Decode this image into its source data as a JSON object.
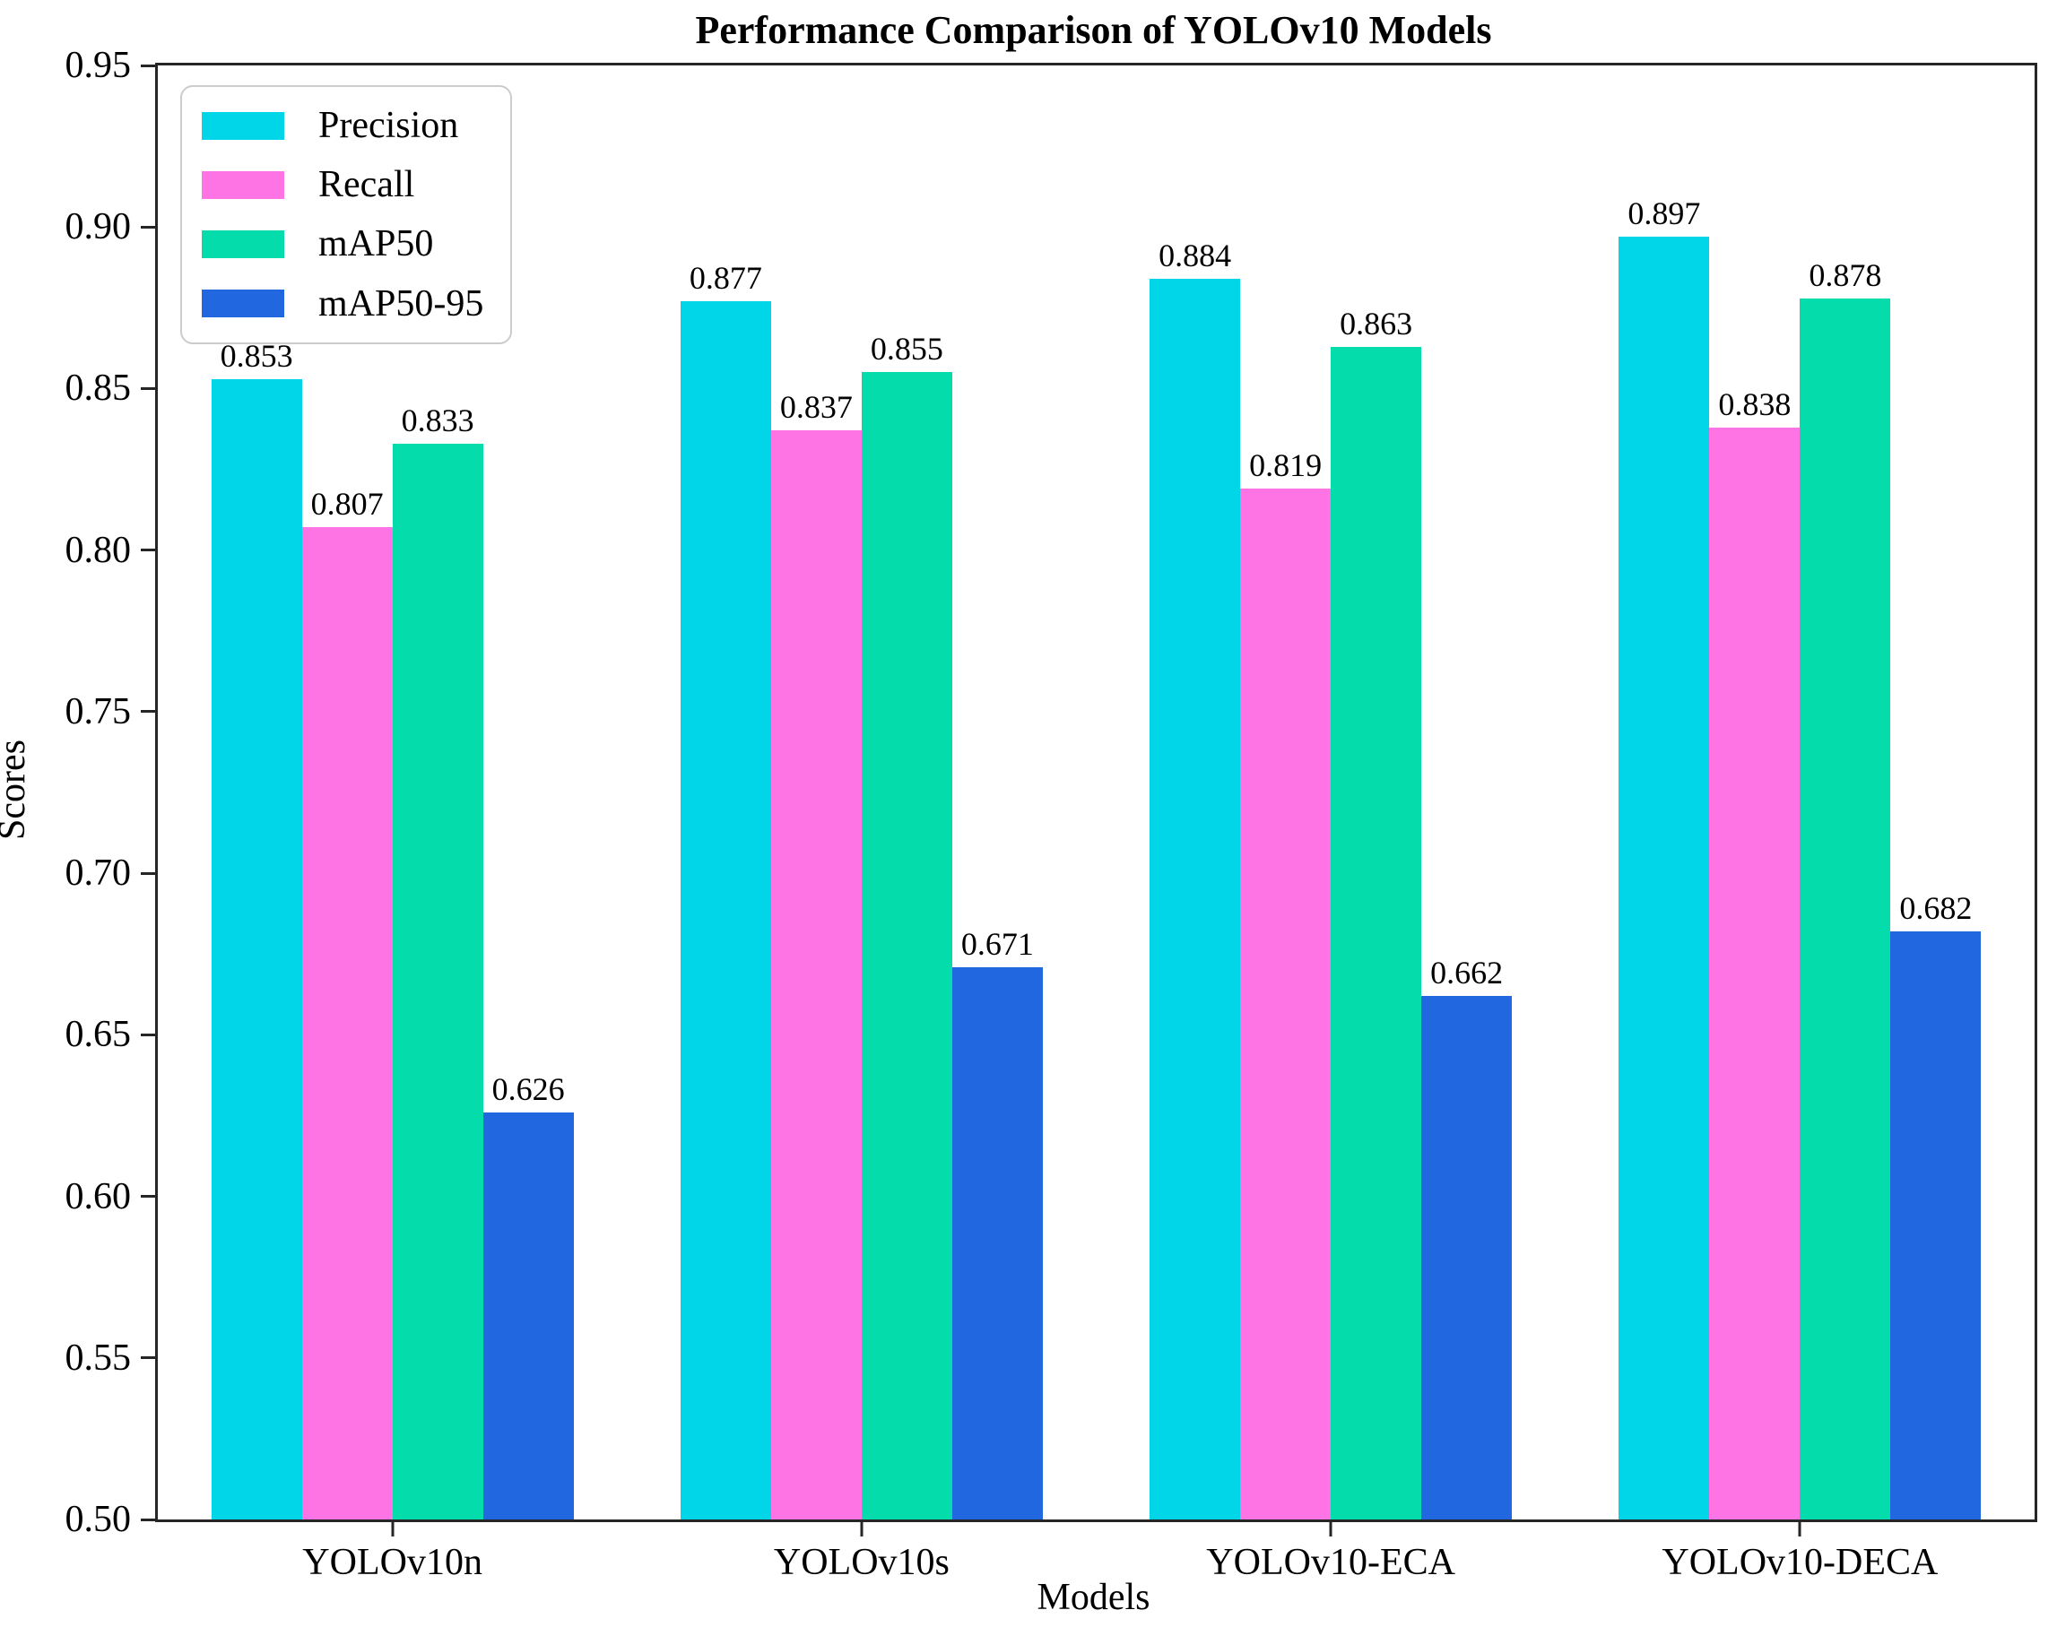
{
  "chart_data": {
    "type": "bar",
    "title": "Performance Comparison of YOLOv10 Models",
    "xlabel": "Models",
    "ylabel": "Scores",
    "ylim": [
      0.5,
      0.95
    ],
    "yticks": [
      "0.50",
      "0.55",
      "0.60",
      "0.65",
      "0.70",
      "0.75",
      "0.80",
      "0.85",
      "0.90",
      "0.95"
    ],
    "grid": false,
    "legend_position": "upper-left",
    "categories": [
      "YOLOv10n",
      "YOLOv10s",
      "YOLOv10-ECA",
      "YOLOv10-DECA"
    ],
    "series": [
      {
        "name": "Precision",
        "color": "#00D6E8",
        "values": [
          0.853,
          0.877,
          0.884,
          0.897
        ],
        "labels": [
          "0.853",
          "0.877",
          "0.884",
          "0.897"
        ]
      },
      {
        "name": "Recall",
        "color": "#FF74E4",
        "values": [
          0.807,
          0.837,
          0.819,
          0.838
        ],
        "labels": [
          "0.807",
          "0.837",
          "0.819",
          "0.838"
        ]
      },
      {
        "name": "mAP50",
        "color": "#04DCAC",
        "values": [
          0.833,
          0.855,
          0.863,
          0.878
        ],
        "labels": [
          "0.833",
          "0.855",
          "0.863",
          "0.878"
        ]
      },
      {
        "name": "mAP50-95",
        "color": "#2067E0",
        "values": [
          0.626,
          0.671,
          0.662,
          0.682
        ],
        "labels": [
          "0.626",
          "0.671",
          "0.662",
          "0.682"
        ]
      }
    ]
  }
}
